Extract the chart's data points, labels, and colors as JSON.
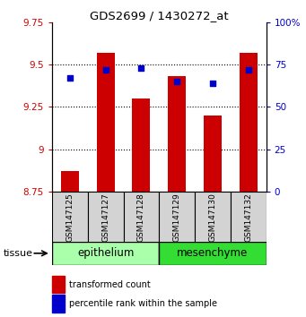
{
  "title": "GDS2699 / 1430272_at",
  "samples": [
    "GSM147125",
    "GSM147127",
    "GSM147128",
    "GSM147129",
    "GSM147130",
    "GSM147132"
  ],
  "bar_values": [
    8.87,
    9.57,
    9.3,
    9.43,
    9.2,
    9.57
  ],
  "percentile_values": [
    67,
    72,
    73,
    65,
    64,
    72
  ],
  "ylim_left": [
    8.75,
    9.75
  ],
  "ylim_right": [
    0,
    100
  ],
  "yticks_left": [
    8.75,
    9.0,
    9.25,
    9.5,
    9.75
  ],
  "yticks_right": [
    0,
    25,
    50,
    75,
    100
  ],
  "bar_color": "#cc0000",
  "dot_color": "#0000cc",
  "bar_width": 0.5,
  "groups": [
    {
      "label": "epithelium",
      "color": "#aaffaa",
      "start": 0,
      "end": 3
    },
    {
      "label": "mesenchyme",
      "color": "#33dd33",
      "start": 3,
      "end": 6
    }
  ],
  "group_label": "tissue",
  "legend_bar_label": "transformed count",
  "legend_dot_label": "percentile rank within the sample",
  "tick_color_left": "#cc0000",
  "tick_color_right": "#0000cc",
  "bar_base": 8.75,
  "sample_box_color": "#d3d3d3",
  "grid_lines": [
    9.0,
    9.25,
    9.5
  ]
}
